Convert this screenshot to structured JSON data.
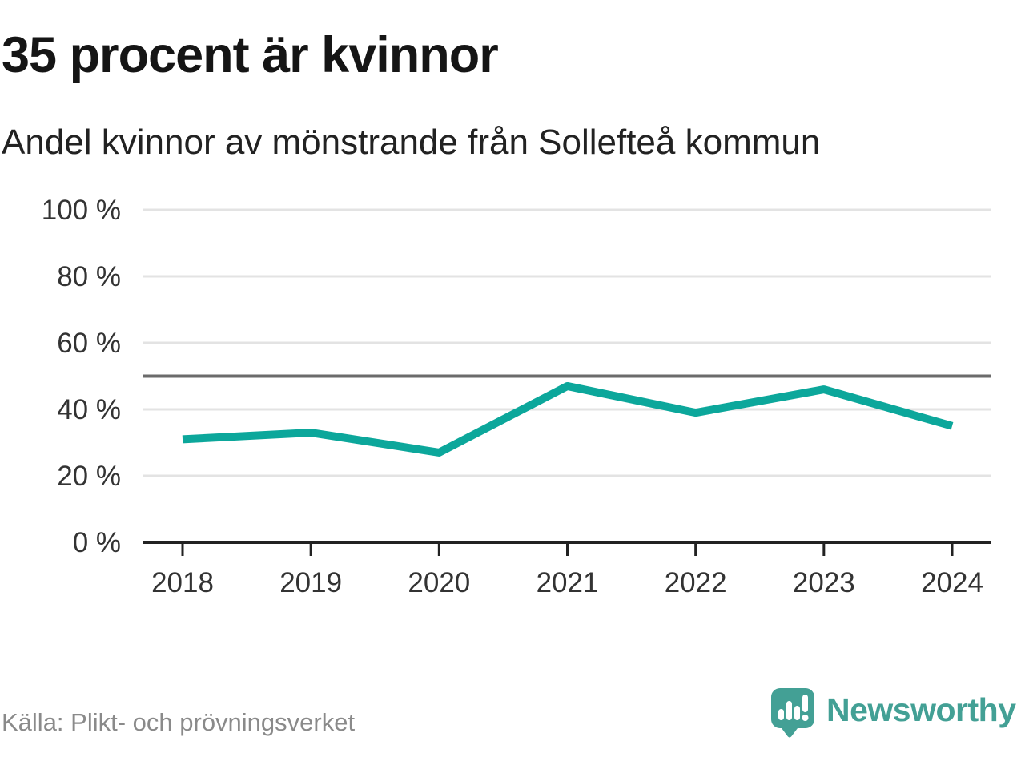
{
  "header": {
    "title": "35 procent är kvinnor",
    "subtitle": "Andel kvinnor av mönstrande från Sollefteå kommun"
  },
  "chart_data": {
    "type": "line",
    "title": "35 procent är kvinnor",
    "subtitle": "Andel kvinnor av mönstrande från Sollefteå kommun",
    "categories": [
      "2018",
      "2019",
      "2020",
      "2021",
      "2022",
      "2023",
      "2024"
    ],
    "series": [
      {
        "name": "Andel kvinnor av mönstrande",
        "values": [
          31,
          33,
          27,
          47,
          39,
          46,
          35
        ]
      }
    ],
    "unit": "%",
    "xlabel": "",
    "ylabel": "",
    "ylim": [
      0,
      100
    ],
    "yticks": [
      0,
      20,
      40,
      60,
      80,
      100
    ],
    "ytick_labels": [
      "0 %",
      "20 %",
      "40 %",
      "60 %",
      "80 %",
      "100 %"
    ],
    "reference_line": 50,
    "grid": true,
    "legend": "none",
    "line_color": "#0ca79b",
    "grid_color": "#e3e3e3",
    "reference_color": "#6b6b6b",
    "axis_color": "#222222",
    "tick_text_color": "#333333"
  },
  "footer": {
    "source": "Källa: Plikt- och prövningsverket",
    "brand": "Newsworthy",
    "brand_color": "#43a095"
  }
}
